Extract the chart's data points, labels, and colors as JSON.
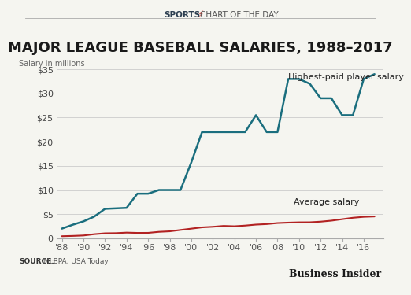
{
  "title": "MAJOR LEAGUE BASEBALL SALARIES, 1988–2017",
  "subtitle_bold": "SPORTS",
  "subtitle_lightning": "⚡",
  "subtitle_normal": "CHART OF THE DAY",
  "ylabel": "Salary in millions",
  "source_bold": "SOURCE:",
  "source_normal": " MLBPA; USA Today",
  "branding": "Business Insider",
  "years": [
    1988,
    1989,
    1990,
    1991,
    1992,
    1993,
    1994,
    1995,
    1996,
    1997,
    1998,
    1999,
    2000,
    2001,
    2002,
    2003,
    2004,
    2005,
    2006,
    2007,
    2008,
    2009,
    2010,
    2011,
    2012,
    2013,
    2014,
    2015,
    2016,
    2017
  ],
  "highest_paid": [
    2.0,
    2.8,
    3.5,
    4.5,
    6.1,
    6.2,
    6.3,
    9.24,
    9.24,
    10.0,
    10.0,
    10.0,
    15.7,
    22.0,
    22.0,
    22.0,
    22.0,
    22.0,
    25.5,
    22.0,
    22.0,
    33.0,
    33.0,
    32.0,
    29.0,
    29.0,
    25.5,
    25.5,
    33.0,
    34.0
  ],
  "average": [
    0.43,
    0.49,
    0.58,
    0.85,
    1.03,
    1.06,
    1.17,
    1.11,
    1.12,
    1.33,
    1.44,
    1.72,
    1.99,
    2.26,
    2.38,
    2.56,
    2.49,
    2.63,
    2.83,
    2.94,
    3.15,
    3.24,
    3.3,
    3.31,
    3.44,
    3.65,
    3.95,
    4.25,
    4.44,
    4.52
  ],
  "highest_color": "#1a6e7e",
  "average_color": "#b22222",
  "bg_color": "#f5f5f0",
  "grid_color": "#cccccc",
  "ylim": [
    0,
    35
  ],
  "yticks": [
    0,
    5,
    10,
    15,
    20,
    25,
    30,
    35
  ],
  "ytick_labels": [
    "0",
    "$5",
    "$10",
    "$15",
    "$20",
    "$25",
    "$30",
    "$35"
  ],
  "xtick_years": [
    1988,
    1990,
    1992,
    1994,
    1996,
    1998,
    2000,
    2002,
    2004,
    2006,
    2008,
    2010,
    2012,
    2014,
    2016
  ],
  "xtick_labels": [
    "'88",
    "'90",
    "'92",
    "'94",
    "'96",
    "'98",
    "'00",
    "'02",
    "'04",
    "'06",
    "'08",
    "'10",
    "'12",
    "'14",
    "'16"
  ],
  "title_fontsize": 13,
  "subtitle_fontsize": 7.5,
  "axis_fontsize": 8,
  "annotation_fontsize": 8,
  "label_fontsize": 7,
  "source_fontsize": 6.5,
  "branding_fontsize": 9
}
